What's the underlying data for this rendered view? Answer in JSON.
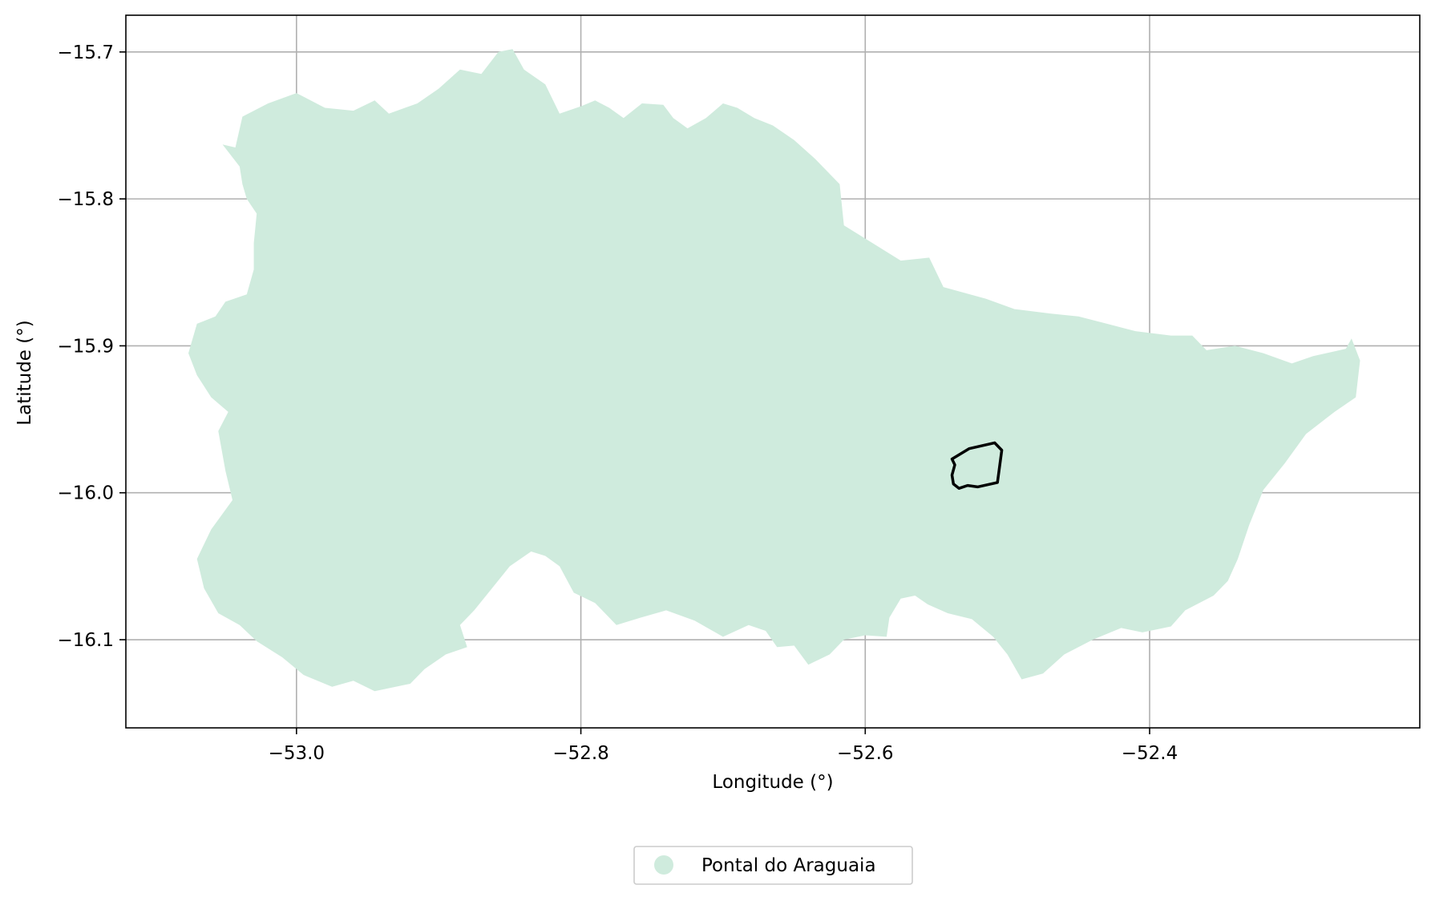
{
  "chart_data": {
    "type": "map",
    "title": "",
    "xlabel": "Longitude (°)",
    "ylabel": "Latitude (°)",
    "xlim": [
      -53.12,
      -52.21
    ],
    "ylim": [
      -16.16,
      -15.675
    ],
    "x_ticks": [
      {
        "value": -53.0,
        "label": "−53.0"
      },
      {
        "value": -52.8,
        "label": "−52.8"
      },
      {
        "value": -52.6,
        "label": "−52.6"
      },
      {
        "value": -52.4,
        "label": "−52.4"
      }
    ],
    "y_ticks": [
      {
        "value": -15.7,
        "label": "−15.7"
      },
      {
        "value": -15.8,
        "label": "−15.8"
      },
      {
        "value": -15.9,
        "label": "−15.9"
      },
      {
        "value": -16.0,
        "label": "−16.0"
      },
      {
        "value": -16.1,
        "label": "−16.1"
      }
    ],
    "grid": true,
    "legend_position": "bottom-center",
    "series": [
      {
        "name": "Pontal do Araguaia",
        "color": "#cfebdd",
        "kind": "filled-polygon",
        "coordinates": [
          [
            -53.043,
            -15.765
          ],
          [
            -53.038,
            -15.744
          ],
          [
            -53.02,
            -15.735
          ],
          [
            -53.0,
            -15.728
          ],
          [
            -52.98,
            -15.738
          ],
          [
            -52.96,
            -15.74
          ],
          [
            -52.945,
            -15.733
          ],
          [
            -52.935,
            -15.742
          ],
          [
            -52.915,
            -15.735
          ],
          [
            -52.9,
            -15.725
          ],
          [
            -52.885,
            -15.712
          ],
          [
            -52.87,
            -15.715
          ],
          [
            -52.858,
            -15.7
          ],
          [
            -52.848,
            -15.698
          ],
          [
            -52.84,
            -15.712
          ],
          [
            -52.825,
            -15.722
          ],
          [
            -52.815,
            -15.742
          ],
          [
            -52.8,
            -15.737
          ],
          [
            -52.79,
            -15.733
          ],
          [
            -52.78,
            -15.738
          ],
          [
            -52.77,
            -15.745
          ],
          [
            -52.757,
            -15.735
          ],
          [
            -52.742,
            -15.736
          ],
          [
            -52.735,
            -15.745
          ],
          [
            -52.725,
            -15.752
          ],
          [
            -52.712,
            -15.745
          ],
          [
            -52.7,
            -15.735
          ],
          [
            -52.69,
            -15.738
          ],
          [
            -52.678,
            -15.745
          ],
          [
            -52.665,
            -15.75
          ],
          [
            -52.65,
            -15.76
          ],
          [
            -52.635,
            -15.773
          ],
          [
            -52.618,
            -15.79
          ],
          [
            -52.615,
            -15.818
          ],
          [
            -52.595,
            -15.83
          ],
          [
            -52.575,
            -15.842
          ],
          [
            -52.555,
            -15.84
          ],
          [
            -52.545,
            -15.86
          ],
          [
            -52.515,
            -15.868
          ],
          [
            -52.495,
            -15.875
          ],
          [
            -52.47,
            -15.878
          ],
          [
            -52.45,
            -15.88
          ],
          [
            -52.43,
            -15.885
          ],
          [
            -52.41,
            -15.89
          ],
          [
            -52.385,
            -15.893
          ],
          [
            -52.37,
            -15.893
          ],
          [
            -52.36,
            -15.903
          ],
          [
            -52.34,
            -15.9
          ],
          [
            -52.32,
            -15.905
          ],
          [
            -52.3,
            -15.912
          ],
          [
            -52.285,
            -15.907
          ],
          [
            -52.262,
            -15.902
          ],
          [
            -52.258,
            -15.895
          ],
          [
            -52.252,
            -15.91
          ],
          [
            -52.255,
            -15.935
          ],
          [
            -52.27,
            -15.945
          ],
          [
            -52.29,
            -15.96
          ],
          [
            -52.305,
            -15.98
          ],
          [
            -52.32,
            -15.998
          ],
          [
            -52.33,
            -16.022
          ],
          [
            -52.338,
            -16.045
          ],
          [
            -52.345,
            -16.06
          ],
          [
            -52.355,
            -16.07
          ],
          [
            -52.375,
            -16.08
          ],
          [
            -52.385,
            -16.091
          ],
          [
            -52.405,
            -16.095
          ],
          [
            -52.42,
            -16.092
          ],
          [
            -52.44,
            -16.1
          ],
          [
            -52.46,
            -16.11
          ],
          [
            -52.475,
            -16.123
          ],
          [
            -52.49,
            -16.127
          ],
          [
            -52.5,
            -16.11
          ],
          [
            -52.51,
            -16.098
          ],
          [
            -52.525,
            -16.086
          ],
          [
            -52.542,
            -16.082
          ],
          [
            -52.556,
            -16.076
          ],
          [
            -52.565,
            -16.07
          ],
          [
            -52.575,
            -16.072
          ],
          [
            -52.583,
            -16.085
          ],
          [
            -52.585,
            -16.098
          ],
          [
            -52.6,
            -16.097
          ],
          [
            -52.615,
            -16.1
          ],
          [
            -52.625,
            -16.11
          ],
          [
            -52.64,
            -16.117
          ],
          [
            -52.65,
            -16.104
          ],
          [
            -52.662,
            -16.105
          ],
          [
            -52.67,
            -16.094
          ],
          [
            -52.682,
            -16.09
          ],
          [
            -52.7,
            -16.098
          ],
          [
            -52.72,
            -16.087
          ],
          [
            -52.74,
            -16.08
          ],
          [
            -52.758,
            -16.085
          ],
          [
            -52.775,
            -16.09
          ],
          [
            -52.79,
            -16.075
          ],
          [
            -52.805,
            -16.068
          ],
          [
            -52.815,
            -16.05
          ],
          [
            -52.825,
            -16.043
          ],
          [
            -52.835,
            -16.04
          ],
          [
            -52.85,
            -16.05
          ],
          [
            -52.865,
            -16.068
          ],
          [
            -52.875,
            -16.08
          ],
          [
            -52.885,
            -16.09
          ],
          [
            -52.88,
            -16.105
          ],
          [
            -52.895,
            -16.11
          ],
          [
            -52.91,
            -16.12
          ],
          [
            -52.92,
            -16.13
          ],
          [
            -52.945,
            -16.135
          ],
          [
            -52.96,
            -16.128
          ],
          [
            -52.975,
            -16.132
          ],
          [
            -52.995,
            -16.124
          ],
          [
            -53.01,
            -16.112
          ],
          [
            -53.028,
            -16.101
          ],
          [
            -53.04,
            -16.09
          ],
          [
            -53.055,
            -16.082
          ],
          [
            -53.065,
            -16.065
          ],
          [
            -53.07,
            -16.045
          ],
          [
            -53.06,
            -16.025
          ],
          [
            -53.045,
            -16.005
          ],
          [
            -53.05,
            -15.985
          ],
          [
            -53.055,
            -15.958
          ],
          [
            -53.048,
            -15.945
          ],
          [
            -53.06,
            -15.935
          ],
          [
            -53.07,
            -15.92
          ],
          [
            -53.076,
            -15.905
          ],
          [
            -53.07,
            -15.885
          ],
          [
            -53.057,
            -15.88
          ],
          [
            -53.05,
            -15.87
          ],
          [
            -53.035,
            -15.865
          ],
          [
            -53.03,
            -15.848
          ],
          [
            -53.03,
            -15.83
          ],
          [
            -53.028,
            -15.81
          ],
          [
            -53.035,
            -15.8
          ],
          [
            -53.038,
            -15.79
          ],
          [
            -53.04,
            -15.778
          ],
          [
            -53.052,
            -15.763
          ]
        ]
      },
      {
        "name": "",
        "color": "#000000",
        "kind": "outline-polygon",
        "coordinates": [
          [
            -52.509,
            -15.966
          ],
          [
            -52.504,
            -15.971
          ],
          [
            -52.507,
            -15.993
          ],
          [
            -52.521,
            -15.996
          ],
          [
            -52.528,
            -15.995
          ],
          [
            -52.534,
            -15.997
          ],
          [
            -52.538,
            -15.994
          ],
          [
            -52.539,
            -15.988
          ],
          [
            -52.537,
            -15.981
          ],
          [
            -52.539,
            -15.977
          ],
          [
            -52.527,
            -15.97
          ]
        ]
      }
    ],
    "legend": [
      {
        "label": "Pontal do Araguaia",
        "color": "#cfebdd",
        "marker": "circle"
      }
    ]
  }
}
